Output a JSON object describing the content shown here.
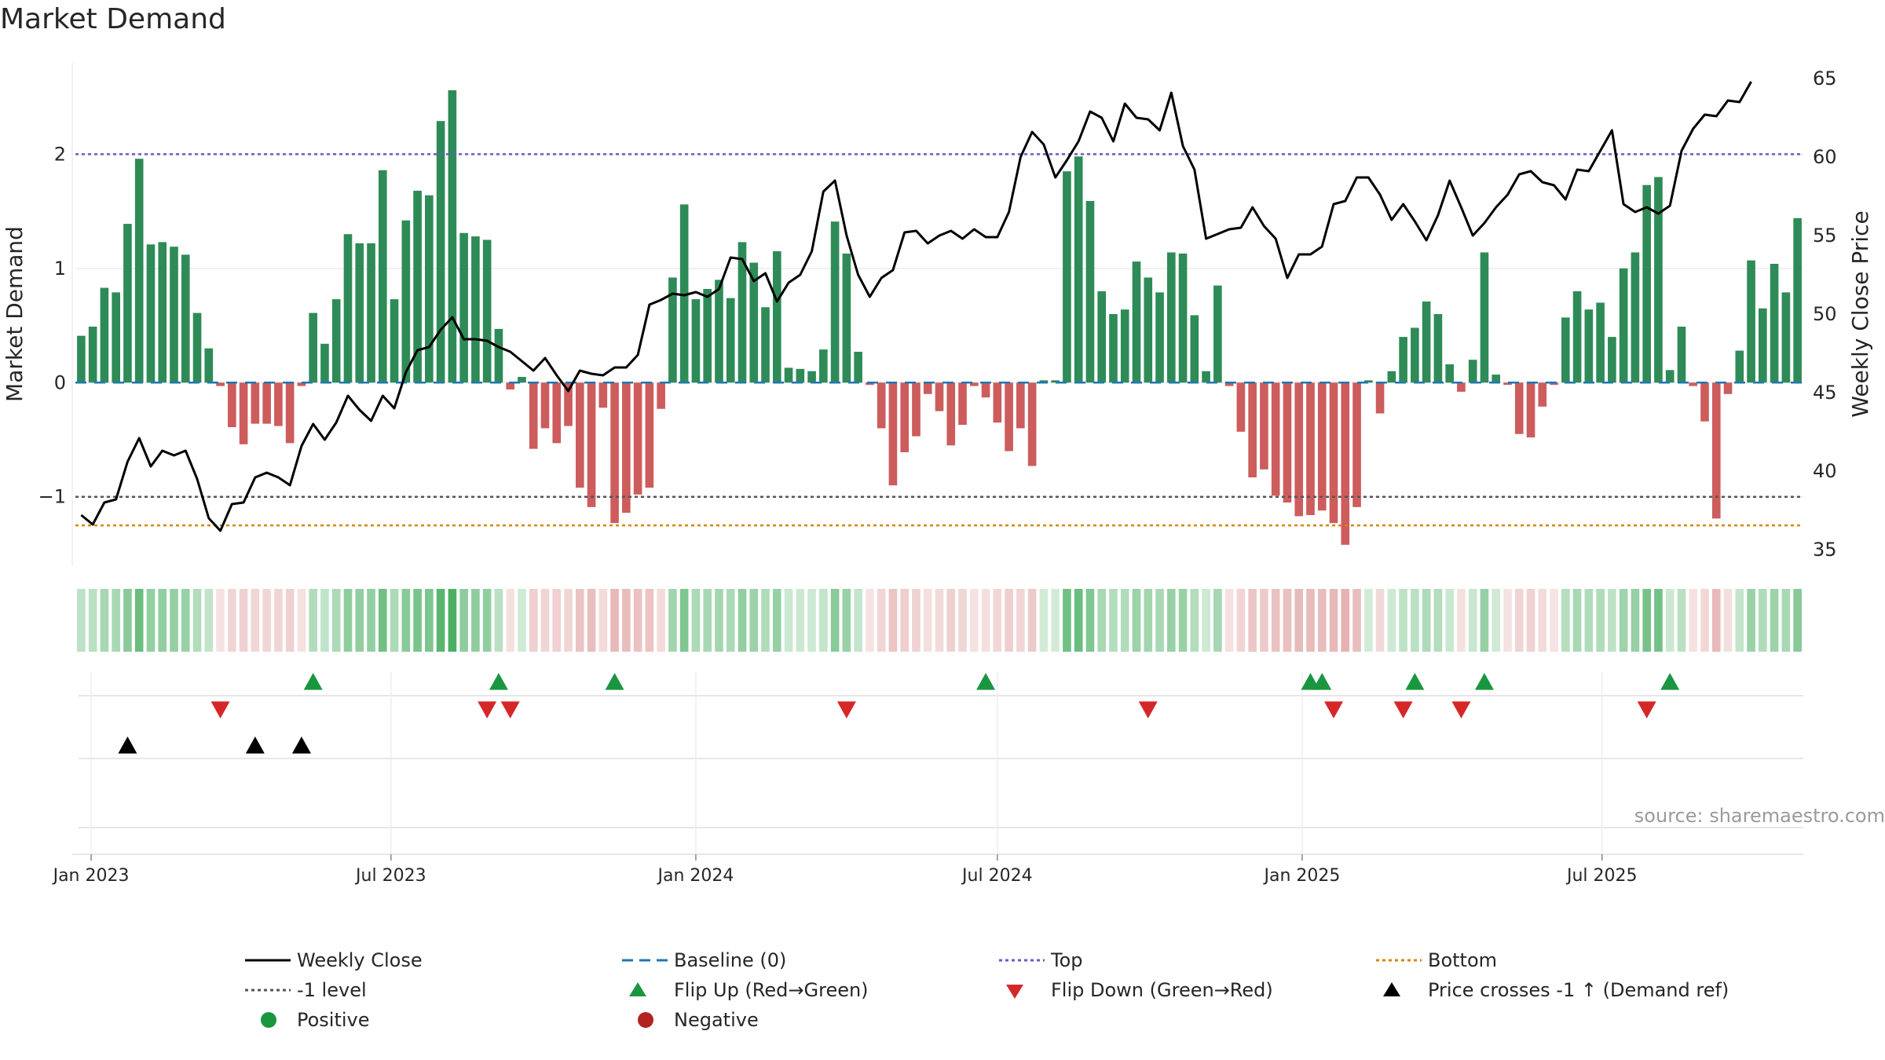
{
  "title": "Market Demand",
  "source_text": "source: sharemaestro.com",
  "colors": {
    "positive_bar": "#2e8b57",
    "negative_bar": "#cd5c5c",
    "close_line": "#000000",
    "baseline": "#1f77b4",
    "top_line": "#6a5acd",
    "minus1_line": "#555555",
    "bottom_line": "#d4860b",
    "flip_up": "#1a9641",
    "flip_down": "#d62728",
    "cross": "#000000",
    "positive_dot": "#1a9641",
    "negative_dot": "#b22222"
  },
  "chart_data": {
    "type": "bar",
    "title": "Market Demand",
    "ylabel": "Market Demand",
    "y2label": "Weekly Close Price",
    "ylim": [
      -1.6,
      2.8
    ],
    "y2lim": [
      34,
      66
    ],
    "yticks": [
      -1,
      0,
      1,
      2
    ],
    "y2ticks": [
      35,
      40,
      45,
      50,
      55,
      60,
      65
    ],
    "start_date": "2022-12-26",
    "reference_lines": {
      "top": 2.0,
      "minus1": -1.0,
      "bottom": -1.25,
      "baseline": 0
    },
    "xticks": [
      {
        "label": "Jan 2023",
        "date": "2023-01-01"
      },
      {
        "label": "Jul 2023",
        "date": "2023-07-01"
      },
      {
        "label": "Jan 2024",
        "date": "2024-01-01"
      },
      {
        "label": "Jul 2024",
        "date": "2024-07-01"
      },
      {
        "label": "Jan 2025",
        "date": "2025-01-01"
      },
      {
        "label": "Jul 2025",
        "date": "2025-07-01"
      }
    ],
    "demand": [
      0.41,
      0.49,
      0.83,
      0.79,
      1.39,
      1.96,
      1.21,
      1.23,
      1.19,
      1.12,
      0.61,
      0.3,
      -0.03,
      -0.39,
      -0.54,
      -0.36,
      -0.36,
      -0.38,
      -0.53,
      -0.03,
      0.61,
      0.34,
      0.73,
      1.3,
      1.22,
      1.22,
      1.86,
      0.73,
      1.42,
      1.68,
      1.64,
      2.29,
      2.56,
      1.31,
      1.28,
      1.25,
      0.47,
      -0.06,
      0.05,
      -0.58,
      -0.4,
      -0.53,
      -0.38,
      -0.92,
      -1.09,
      -0.22,
      -1.23,
      -1.14,
      -0.98,
      -0.92,
      -0.23,
      0.92,
      1.56,
      0.73,
      0.82,
      0.9,
      0.74,
      1.23,
      1.05,
      0.66,
      1.15,
      0.13,
      0.12,
      0.1,
      0.29,
      1.41,
      1.13,
      0.27,
      -0.02,
      -0.4,
      -0.9,
      -0.61,
      -0.47,
      -0.1,
      -0.25,
      -0.55,
      -0.37,
      -0.03,
      -0.13,
      -0.35,
      -0.6,
      -0.4,
      -0.73,
      0.02,
      0.02,
      1.85,
      1.98,
      1.59,
      0.8,
      0.6,
      0.64,
      1.06,
      0.92,
      0.79,
      1.14,
      1.13,
      0.59,
      0.1,
      0.85,
      -0.03,
      -0.43,
      -0.83,
      -0.76,
      -0.99,
      -1.05,
      -1.17,
      -1.16,
      -1.12,
      -1.23,
      -1.42,
      -1.09,
      0.02,
      -0.27,
      0.1,
      0.4,
      0.48,
      0.71,
      0.6,
      0.16,
      -0.08,
      0.2,
      1.14,
      0.07,
      -0.02,
      -0.45,
      -0.48,
      -0.21,
      -0.02,
      0.57,
      0.8,
      0.64,
      0.7,
      0.4,
      1.0,
      1.14,
      1.73,
      1.8,
      0.11,
      0.49,
      -0.03,
      -0.34,
      -1.19,
      -0.1,
      0.28,
      1.07,
      0.65,
      1.04,
      0.79,
      1.44
    ],
    "close": [
      37.2,
      36.6,
      38.0,
      38.2,
      40.6,
      42.1,
      40.3,
      41.3,
      41.0,
      41.3,
      39.5,
      37.0,
      36.2,
      37.9,
      38.0,
      39.6,
      39.9,
      39.6,
      39.1,
      41.6,
      43.0,
      42.0,
      43.1,
      44.8,
      43.9,
      43.2,
      44.8,
      44.0,
      46.3,
      47.7,
      47.9,
      49.0,
      49.8,
      48.4,
      48.4,
      48.3,
      47.9,
      47.6,
      47.0,
      46.4,
      47.2,
      46.1,
      45.1,
      46.4,
      46.2,
      46.1,
      46.6,
      46.6,
      47.4,
      50.6,
      50.9,
      51.3,
      51.2,
      51.4,
      51.1,
      51.6,
      53.6,
      53.5,
      52.1,
      52.6,
      50.8,
      52.0,
      52.5,
      54.0,
      57.8,
      58.5,
      55.0,
      52.5,
      51.1,
      52.3,
      52.8,
      55.2,
      55.3,
      54.5,
      55.0,
      55.3,
      54.8,
      55.4,
      54.9,
      54.9,
      56.5,
      60.0,
      61.6,
      60.8,
      58.7,
      59.8,
      61.0,
      62.9,
      62.5,
      61.0,
      63.4,
      62.5,
      62.4,
      61.7,
      64.1,
      60.7,
      59.2,
      54.8,
      55.1,
      55.4,
      55.5,
      56.8,
      55.6,
      54.8,
      52.3,
      53.8,
      53.8,
      54.3,
      57.0,
      57.2,
      58.7,
      58.7,
      57.6,
      56.0,
      57.0,
      55.9,
      54.7,
      56.3,
      58.5,
      56.8,
      55.0,
      55.8,
      56.8,
      57.6,
      58.9,
      59.1,
      58.4,
      58.2,
      57.3,
      59.2,
      59.1,
      60.4,
      61.7,
      57.0,
      56.5,
      56.8,
      56.4,
      56.9,
      60.4,
      61.8,
      62.7,
      62.6,
      63.6,
      63.5,
      64.8
    ],
    "flip_up_dates": [
      "2023-05-15",
      "2023-09-04",
      "2023-11-13",
      "2024-06-24",
      "2025-01-06",
      "2025-01-13",
      "2025-03-10",
      "2025-04-21",
      "2025-08-11"
    ],
    "flip_down_dates": [
      "2023-03-20",
      "2023-08-28",
      "2023-09-11",
      "2024-04-01",
      "2024-09-30",
      "2025-01-20",
      "2025-03-03",
      "2025-04-07",
      "2025-07-28"
    ],
    "cross_dates": [
      "2023-01-23",
      "2023-04-10",
      "2023-05-08"
    ]
  },
  "legend": {
    "weekly_close": "Weekly Close",
    "baseline": "Baseline (0)",
    "top": "Top",
    "bottom": "Bottom",
    "minus1": "-1 level",
    "flip_up": "Flip Up (Red→Green)",
    "flip_down": "Flip Down (Green→Red)",
    "price_cross": "Price crosses -1 ↑ (Demand ref)",
    "positive": "Positive",
    "negative": "Negative"
  }
}
